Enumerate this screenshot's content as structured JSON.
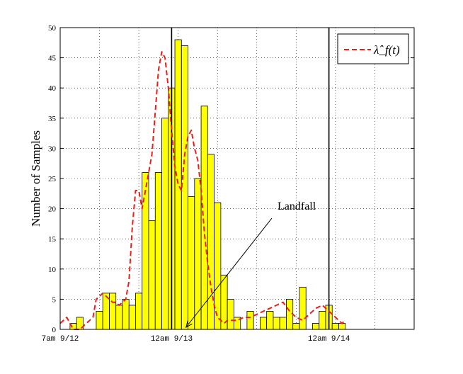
{
  "chart_data": {
    "type": "bar",
    "ylabel": "Number of Samples",
    "xlabel": "",
    "ylim": [
      0,
      50
    ],
    "yticks": [
      0,
      5,
      10,
      15,
      20,
      25,
      30,
      35,
      40,
      45,
      50
    ],
    "x_range_hours": [
      0,
      54
    ],
    "xticks": [
      {
        "hour": 0,
        "label": "7am 9/12"
      },
      {
        "hour": 17,
        "label": "12am 9/13"
      },
      {
        "hour": 41,
        "label": "12am 9/14"
      }
    ],
    "grid": true,
    "legend": {
      "placement": "top-right",
      "entries": [
        "λ̂_f(t)"
      ]
    },
    "bar_color": "#ffff00",
    "histogram": {
      "name": "samples",
      "values": [
        0,
        1,
        2,
        0,
        0,
        3,
        6,
        6,
        4,
        5,
        4,
        6,
        26,
        18,
        26,
        35,
        40,
        48,
        47,
        22,
        25,
        37,
        29,
        21,
        9,
        5,
        2,
        0,
        3,
        0,
        2,
        3,
        2,
        2,
        5,
        1,
        7,
        0,
        1,
        3,
        4,
        1,
        1
      ]
    },
    "series": [
      {
        "name": "lambda_f",
        "style": "dashed",
        "color": "#e8201c",
        "x": [
          0,
          1,
          2,
          3,
          4,
          5,
          5.5,
          6,
          6.5,
          7,
          7.5,
          8,
          8.5,
          9,
          9.5,
          10,
          10.5,
          11,
          11.5,
          12,
          12.5,
          13,
          13.5,
          14,
          14.5,
          15,
          15.5,
          16,
          16.5,
          17,
          17.5,
          18,
          18.5,
          19,
          19.5,
          20,
          20.5,
          21,
          21.5,
          22,
          22.5,
          23,
          23.5,
          24,
          24.5,
          25,
          25.5,
          26,
          27,
          28,
          29,
          30,
          31,
          32,
          33,
          34,
          35,
          36,
          37,
          38,
          39,
          40,
          41,
          42,
          43,
          43.5
        ],
        "values": [
          1,
          2,
          0,
          0,
          1,
          2,
          5,
          5.5,
          6,
          5.5,
          5,
          4.5,
          4.5,
          4,
          4.5,
          5,
          8,
          17,
          23,
          23,
          20,
          23,
          26,
          29,
          36,
          43,
          46,
          45,
          40,
          33,
          27,
          24,
          23,
          29,
          32,
          33,
          30,
          28,
          23,
          16,
          11,
          7,
          4,
          2,
          1.5,
          1,
          1.5,
          1.5,
          1.5,
          2,
          2,
          2.5,
          3,
          3.5,
          4,
          4.5,
          3,
          2,
          1.5,
          2.5,
          3.5,
          4,
          3,
          2,
          1,
          1.5
        ]
      }
    ],
    "vertical_lines_hours": [
      17,
      41
    ],
    "annotations": [
      {
        "text": "Landfall",
        "arrow_to_hour": 19.2
      }
    ]
  }
}
